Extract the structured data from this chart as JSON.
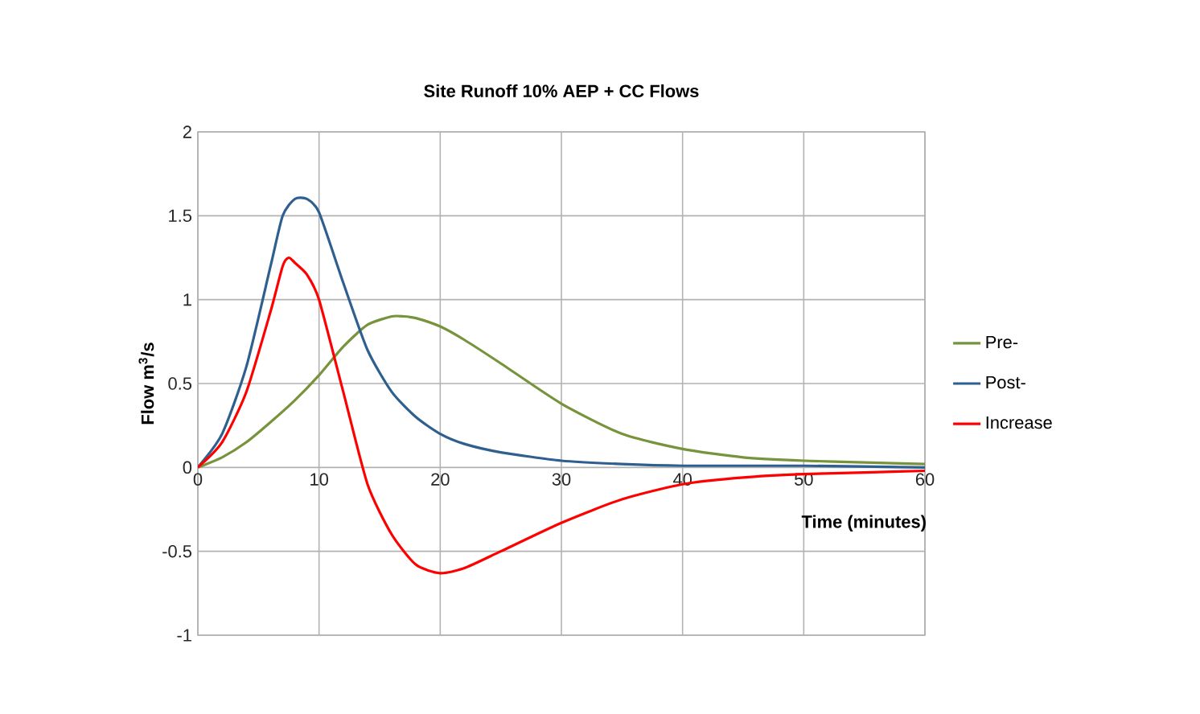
{
  "chart_data": {
    "type": "line",
    "title": "Site Runoff 10% AEP + CC Flows",
    "xlabel": "Time (minutes)",
    "ylabel": "Flow m$^{3}$/s",
    "xlim": [
      0,
      60
    ],
    "ylim": [
      -1,
      2
    ],
    "xticks": [
      0,
      10,
      20,
      30,
      40,
      50,
      60
    ],
    "yticks": [
      -1,
      -0.5,
      0,
      0.5,
      1,
      1.5,
      2
    ],
    "grid": true,
    "legend": "right",
    "marker": "none",
    "line_style": "solid",
    "series": [
      {
        "name": "Pre-",
        "color": "#77933c",
        "x": [
          0,
          2,
          4,
          6,
          8,
          10,
          12,
          14,
          16,
          17,
          18,
          20,
          22,
          25,
          30,
          35,
          40,
          45,
          50,
          55,
          60
        ],
        "values": [
          0,
          0.06,
          0.15,
          0.27,
          0.4,
          0.55,
          0.72,
          0.85,
          0.9,
          0.9,
          0.89,
          0.84,
          0.76,
          0.62,
          0.38,
          0.2,
          0.11,
          0.06,
          0.04,
          0.03,
          0.02
        ]
      },
      {
        "name": "Post-",
        "color": "#2f5f8f",
        "x": [
          0,
          2,
          4,
          6,
          7,
          8,
          9,
          10,
          12,
          14,
          16,
          18,
          20,
          22,
          25,
          30,
          35,
          40,
          50,
          60
        ],
        "values": [
          0,
          0.2,
          0.6,
          1.2,
          1.5,
          1.6,
          1.6,
          1.52,
          1.1,
          0.7,
          0.45,
          0.3,
          0.2,
          0.14,
          0.09,
          0.04,
          0.02,
          0.01,
          0.01,
          0
        ]
      },
      {
        "name": "Increase",
        "color": "#ff0000",
        "x": [
          0,
          2,
          4,
          6,
          7,
          7.5,
          8,
          9,
          10,
          12,
          14,
          16,
          18,
          20,
          22,
          25,
          30,
          35,
          40,
          45,
          50,
          55,
          60
        ],
        "values": [
          0,
          0.15,
          0.45,
          0.93,
          1.2,
          1.25,
          1.22,
          1.15,
          1.0,
          0.45,
          -0.1,
          -0.4,
          -0.58,
          -0.63,
          -0.6,
          -0.5,
          -0.33,
          -0.19,
          -0.1,
          -0.06,
          -0.04,
          -0.03,
          -0.02
        ]
      }
    ]
  }
}
